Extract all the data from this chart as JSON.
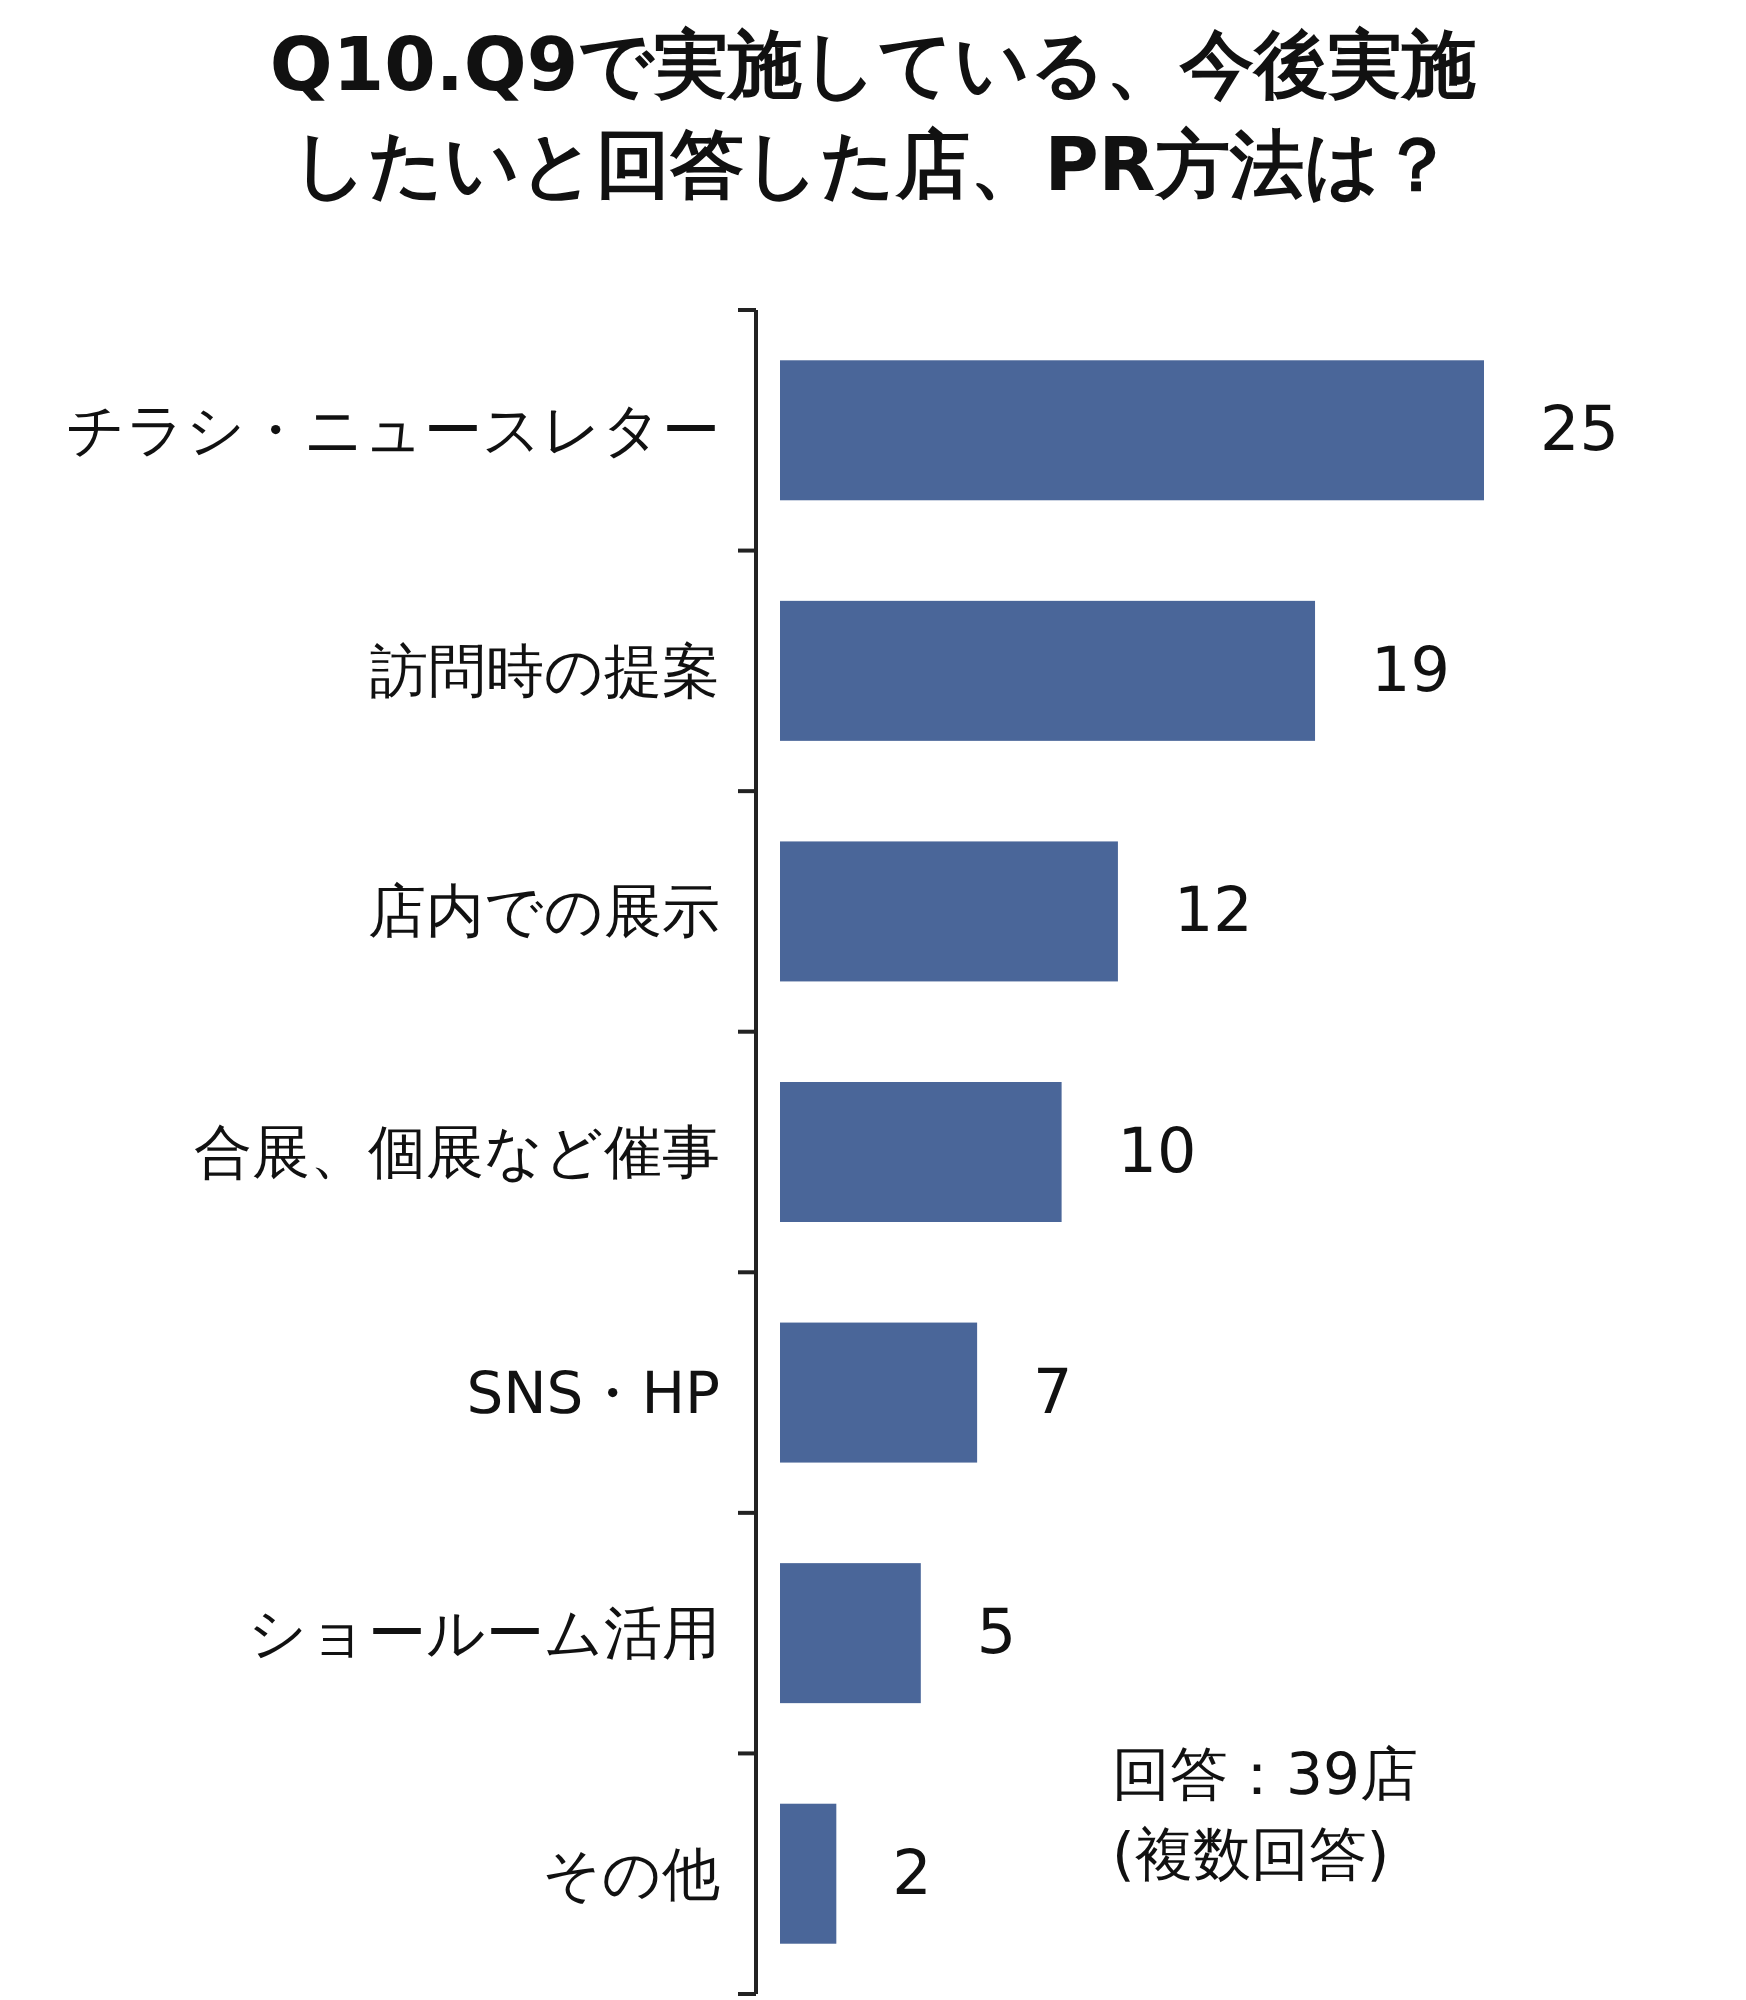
{
  "chart_data": {
    "type": "bar",
    "orientation": "horizontal",
    "title": "Q10.Q9で実施している、今後実施したいと回答した店、PR方法は？",
    "categories": [
      "チラシ・ニュースレター",
      "訪問時の提案",
      "店内での展示",
      "合展、個展など催事",
      "SNS・HP",
      "ショールーム活用",
      "その他"
    ],
    "values": [
      25,
      19,
      12,
      10,
      7,
      5,
      2
    ],
    "color": "#4a6699",
    "data_labels": true,
    "annotations": [
      "回答：39店",
      "(複数回答)"
    ]
  }
}
